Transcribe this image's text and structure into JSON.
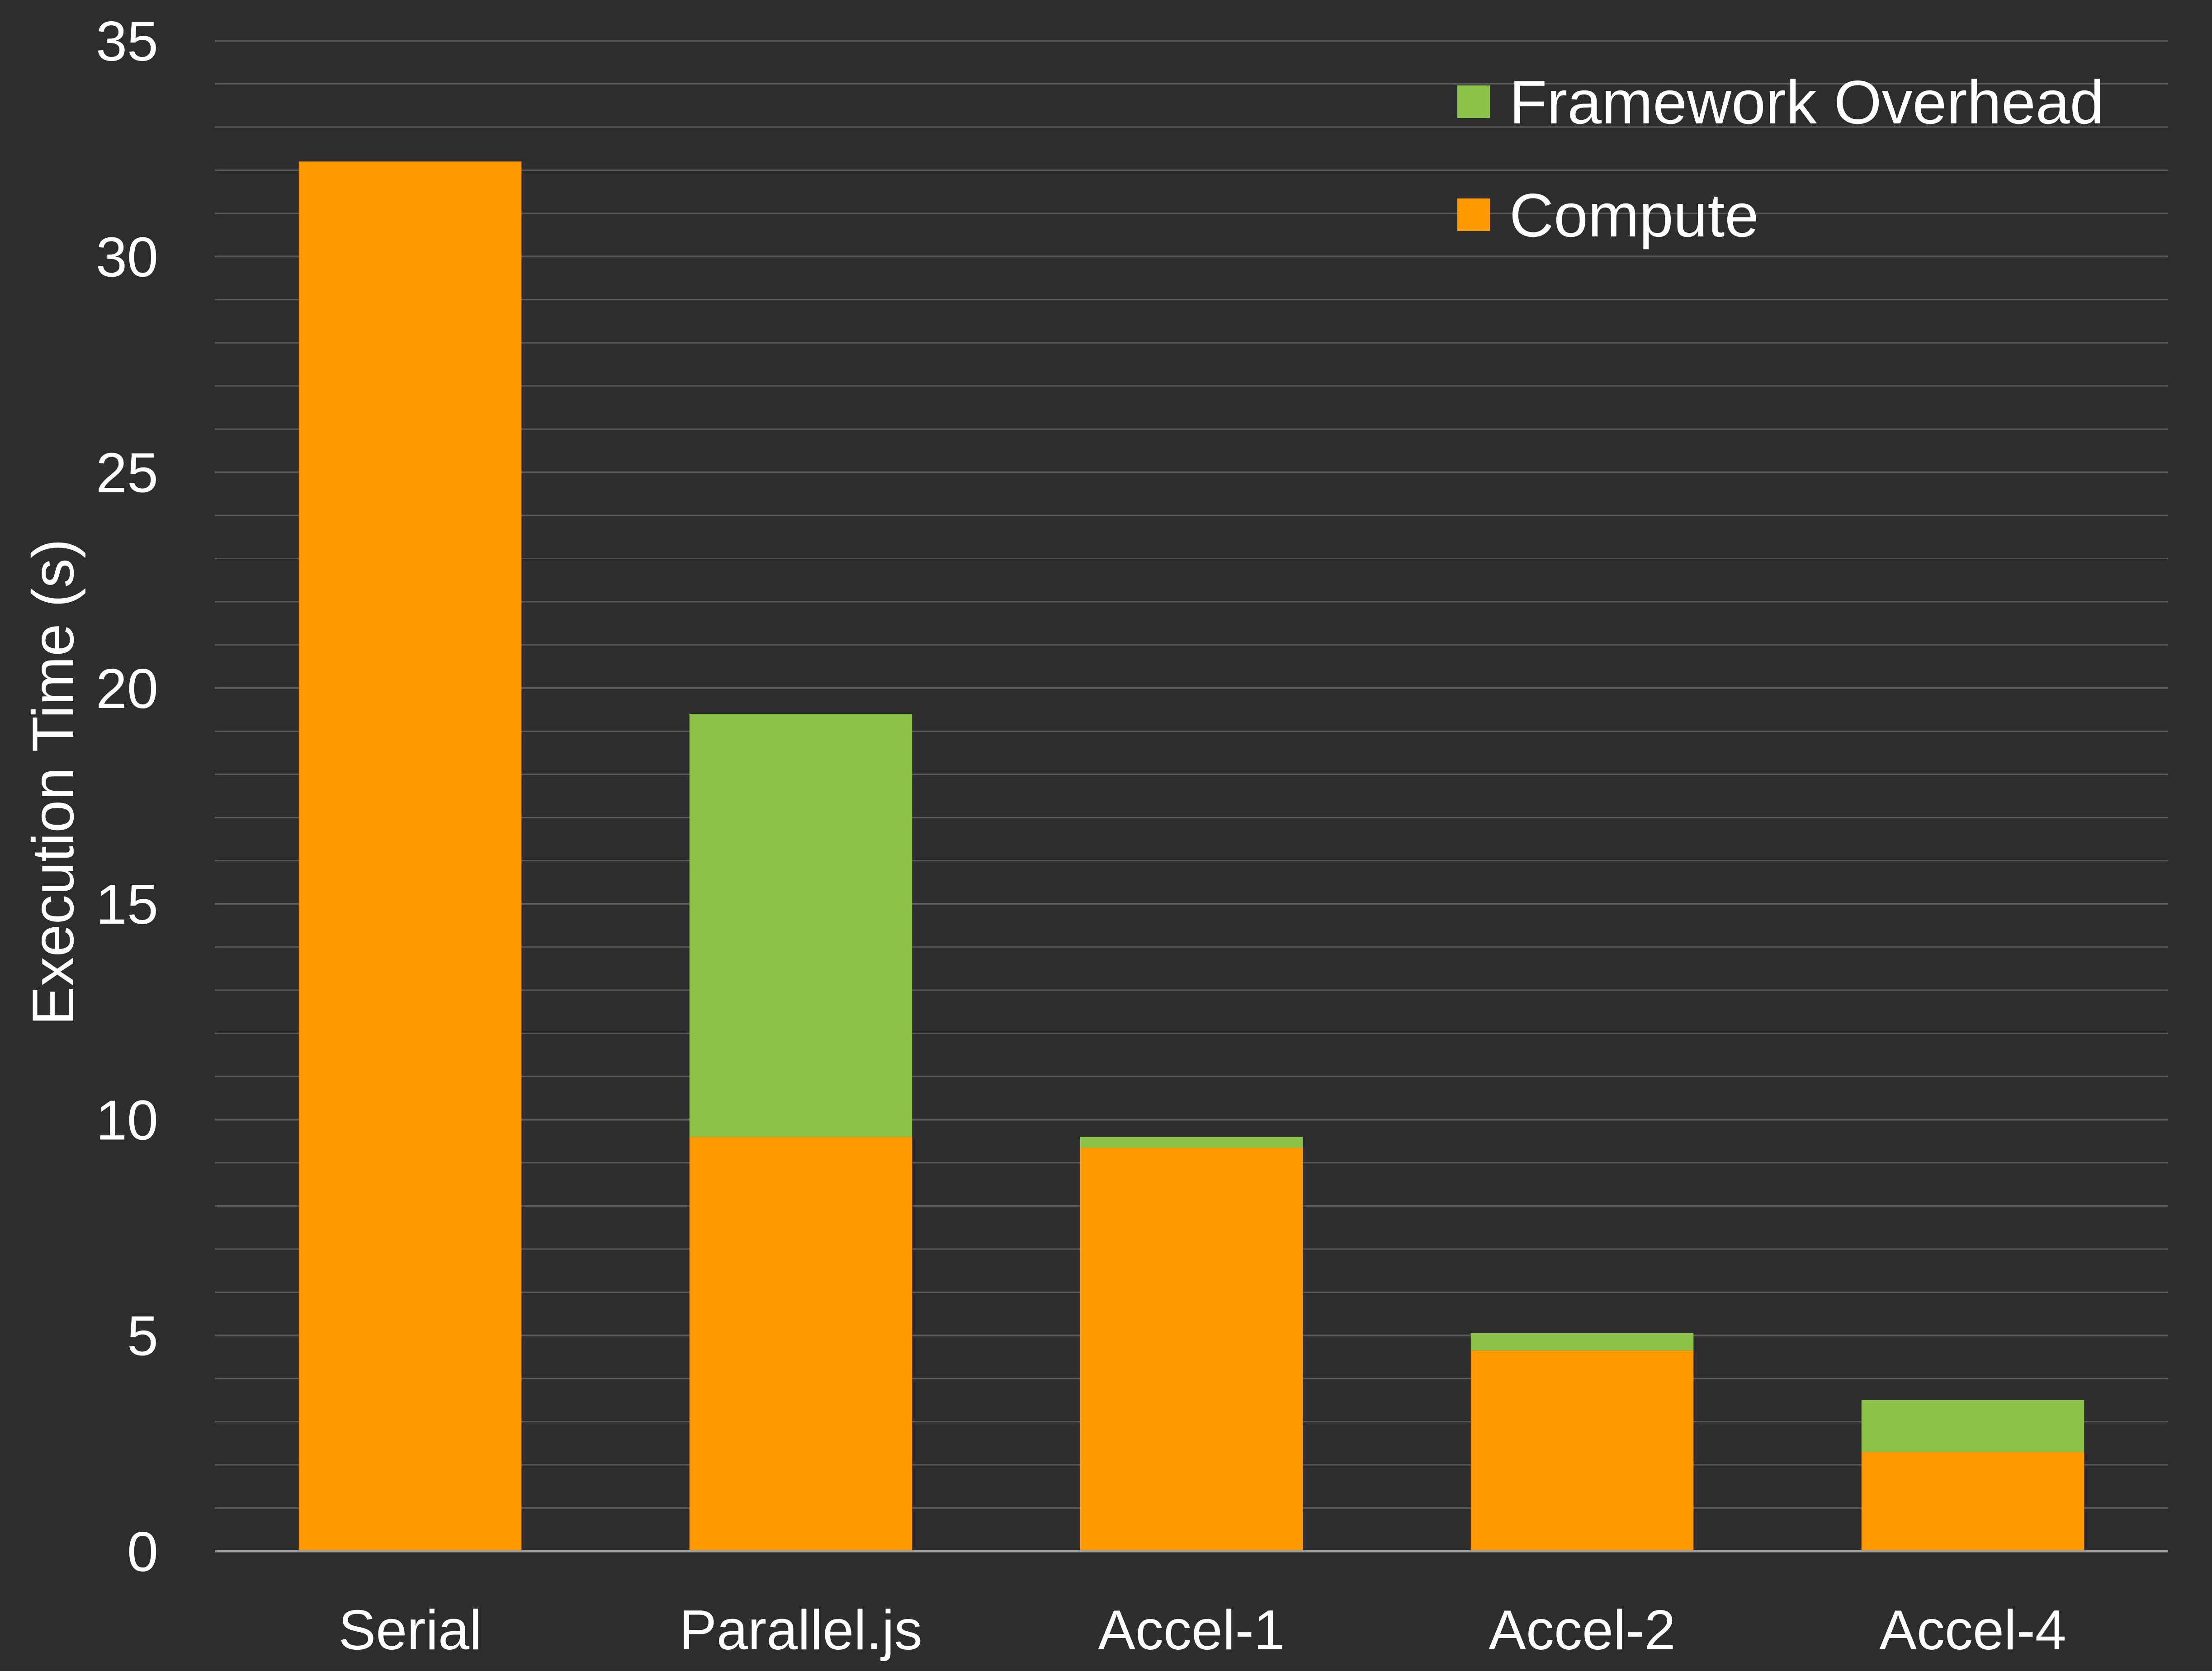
{
  "chart_data": {
    "type": "bar",
    "stacked": true,
    "title": "",
    "xlabel": "",
    "ylabel": "Execution Time (s)",
    "ylim": [
      0,
      35
    ],
    "y_major_ticks": [
      0,
      5,
      10,
      15,
      20,
      25,
      30,
      35
    ],
    "y_minor_step": 1,
    "grid": true,
    "legend_placement": "top-right",
    "categories": [
      "Serial",
      "Parallel.js",
      "Accel-1",
      "Accel-2",
      "Accel-4"
    ],
    "series": [
      {
        "name": "Compute",
        "color": "#ff9900",
        "values": [
          32.2,
          9.6,
          9.35,
          4.65,
          2.3
        ]
      },
      {
        "name": "Framework Overhead",
        "color": "#8bc34a",
        "values": [
          0.0,
          9.8,
          0.25,
          0.4,
          1.2
        ]
      }
    ],
    "legend_order": [
      "Framework Overhead",
      "Compute"
    ]
  },
  "colors": {
    "background": "#2d2d2d",
    "text": "#ffffff",
    "gridline": "#5a5a5a",
    "axis": "#9e9e9e"
  }
}
